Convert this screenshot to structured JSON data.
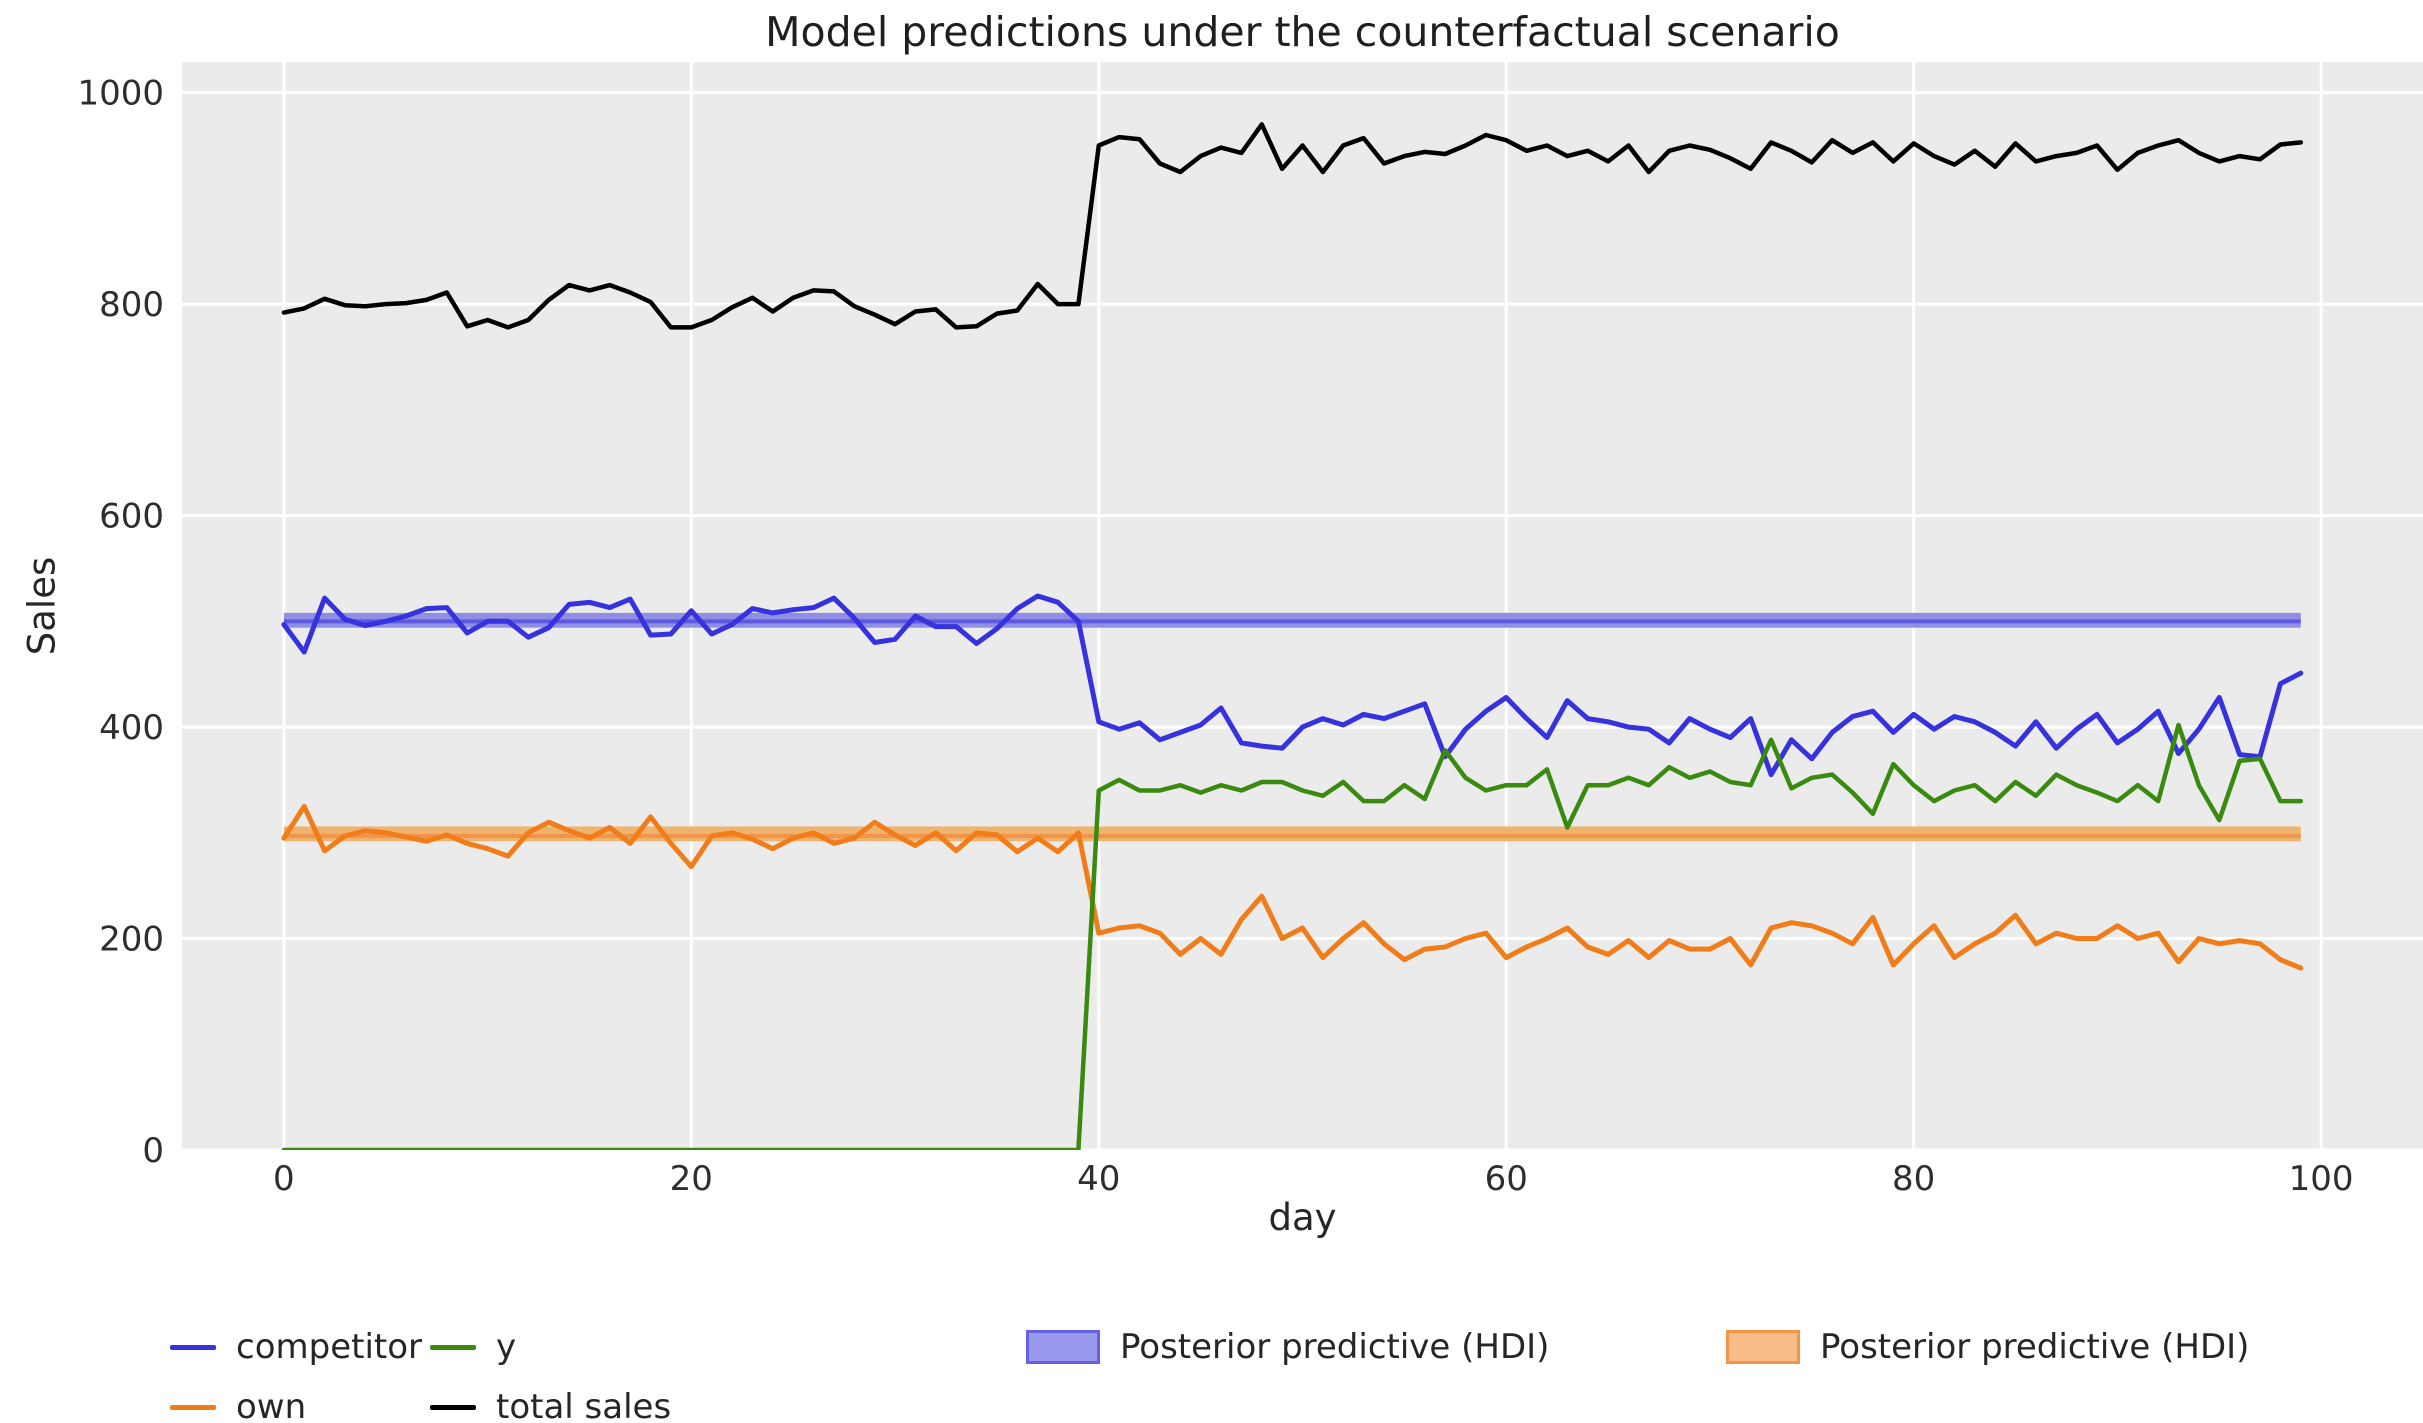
{
  "title": "Model predictions under the counterfactual scenario",
  "axes": {
    "xlabel": "day",
    "ylabel": "Sales"
  },
  "legend": {
    "items": [
      {
        "label": "competitor",
        "type": "line",
        "color": "#3632dd"
      },
      {
        "label": "own",
        "type": "line",
        "color": "#f07d1a"
      },
      {
        "label": "y",
        "type": "line",
        "color": "#3a8a10"
      },
      {
        "label": "total sales",
        "type": "line",
        "color": "#000000"
      },
      {
        "label": "Posterior predictive (HDI)",
        "type": "patch",
        "color": "#9a99ee",
        "edge": "#6561e6"
      },
      {
        "label": "Posterior predictive (HDI)",
        "type": "patch",
        "color": "#f8be87",
        "edge": "#f39448"
      }
    ]
  },
  "chart_data": {
    "type": "line",
    "title": "Model predictions under the counterfactual scenario",
    "xlabel": "day",
    "ylabel": "Sales",
    "xlim": [
      -5,
      105
    ],
    "ylim": [
      0,
      1029
    ],
    "xticks": [
      0,
      20,
      40,
      60,
      80,
      100
    ],
    "yticks": [
      0,
      200,
      400,
      600,
      800,
      1000
    ],
    "grid": true,
    "background": "#ebebeb",
    "gridcolor": "#ffffff",
    "tick_color": "#2e2e2e",
    "legend_position": "below",
    "x": [
      0,
      1,
      2,
      3,
      4,
      5,
      6,
      7,
      8,
      9,
      10,
      11,
      12,
      13,
      14,
      15,
      16,
      17,
      18,
      19,
      20,
      21,
      22,
      23,
      24,
      25,
      26,
      27,
      28,
      29,
      30,
      31,
      32,
      33,
      34,
      35,
      36,
      37,
      38,
      39,
      40,
      41,
      42,
      43,
      44,
      45,
      46,
      47,
      48,
      49,
      50,
      51,
      52,
      53,
      54,
      55,
      56,
      57,
      58,
      59,
      60,
      61,
      62,
      63,
      64,
      65,
      66,
      67,
      68,
      69,
      70,
      71,
      72,
      73,
      74,
      75,
      76,
      77,
      78,
      79,
      80,
      81,
      82,
      83,
      84,
      85,
      86,
      87,
      88,
      89,
      90,
      91,
      92,
      93,
      94,
      95,
      96,
      97,
      98,
      99
    ],
    "series": [
      {
        "name": "competitor",
        "color": "#3632dd",
        "width": 5,
        "values": [
          497,
          471,
          522,
          502,
          496,
          500,
          505,
          512,
          513,
          489,
          500,
          500,
          485,
          494,
          516,
          518,
          513,
          521,
          487,
          488,
          510,
          488,
          497,
          512,
          508,
          511,
          513,
          522,
          503,
          480,
          483,
          505,
          495,
          495,
          479,
          493,
          512,
          524,
          518,
          500,
          405,
          398,
          404,
          388,
          395,
          402,
          418,
          385,
          382,
          380,
          400,
          408,
          402,
          412,
          408,
          415,
          422,
          372,
          398,
          415,
          428,
          408,
          390,
          425,
          408,
          405,
          400,
          398,
          385,
          408,
          398,
          390,
          408,
          355,
          388,
          370,
          395,
          410,
          415,
          395,
          412,
          398,
          410,
          405,
          395,
          382,
          405,
          380,
          398,
          412,
          385,
          398,
          415,
          375,
          398,
          428,
          374,
          372,
          441,
          451
        ]
      },
      {
        "name": "own",
        "color": "#f07d1a",
        "width": 5,
        "values": [
          295,
          325,
          283,
          297,
          302,
          300,
          296,
          292,
          298,
          290,
          285,
          278,
          300,
          310,
          302,
          295,
          305,
          290,
          315,
          290,
          268,
          297,
          300,
          294,
          285,
          295,
          300,
          290,
          295,
          310,
          298,
          288,
          300,
          283,
          300,
          298,
          282,
          295,
          282,
          300,
          205,
          210,
          212,
          205,
          185,
          200,
          185,
          218,
          240,
          200,
          210,
          182,
          200,
          215,
          195,
          180,
          190,
          192,
          200,
          205,
          182,
          192,
          200,
          210,
          192,
          185,
          198,
          182,
          198,
          190,
          190,
          200,
          175,
          210,
          215,
          212,
          205,
          195,
          220,
          175,
          195,
          212,
          182,
          195,
          205,
          222,
          195,
          205,
          200,
          200,
          212,
          200,
          205,
          178,
          200,
          195,
          198,
          195,
          180,
          172
        ]
      },
      {
        "name": "y",
        "color": "#3a8a10",
        "width": 4.5,
        "values": [
          0,
          0,
          0,
          0,
          0,
          0,
          0,
          0,
          0,
          0,
          0,
          0,
          0,
          0,
          0,
          0,
          0,
          0,
          0,
          0,
          0,
          0,
          0,
          0,
          0,
          0,
          0,
          0,
          0,
          0,
          0,
          0,
          0,
          0,
          0,
          0,
          0,
          0,
          0,
          0,
          340,
          350,
          340,
          340,
          345,
          338,
          345,
          340,
          348,
          348,
          340,
          335,
          348,
          330,
          330,
          345,
          332,
          378,
          352,
          340,
          345,
          345,
          360,
          305,
          345,
          345,
          352,
          345,
          362,
          352,
          358,
          348,
          345,
          388,
          342,
          352,
          355,
          338,
          318,
          365,
          345,
          330,
          340,
          345,
          330,
          348,
          335,
          355,
          345,
          338,
          330,
          345,
          330,
          402,
          345,
          312,
          368,
          370,
          330,
          330
        ]
      },
      {
        "name": "total sales",
        "color": "#000000",
        "width": 4.5,
        "values": [
          792,
          796,
          805,
          799,
          798,
          800,
          801,
          804,
          811,
          779,
          785,
          778,
          785,
          804,
          818,
          813,
          818,
          811,
          802,
          778,
          778,
          785,
          797,
          806,
          793,
          806,
          813,
          812,
          798,
          790,
          781,
          793,
          795,
          778,
          779,
          791,
          794,
          819,
          800,
          800,
          950,
          958,
          956,
          933,
          925,
          940,
          948,
          943,
          970,
          928,
          950,
          925,
          950,
          957,
          933,
          940,
          944,
          942,
          950,
          960,
          955,
          945,
          950,
          940,
          945,
          935,
          950,
          925,
          945,
          950,
          946,
          938,
          928,
          953,
          945,
          934,
          955,
          943,
          953,
          935,
          952,
          940,
          932,
          945,
          930,
          952,
          935,
          940,
          943,
          950,
          927,
          943,
          950,
          955,
          943,
          935,
          940,
          937,
          951,
          953
        ]
      }
    ],
    "hdi_bands": [
      {
        "name": "Posterior predictive (HDI)",
        "applies_to": "competitor",
        "lower": 494,
        "upper": 508,
        "mean": 500,
        "fill": "#908ee4",
        "mean_color": "#5f59dd",
        "x_start": 0,
        "x_end": 99
      },
      {
        "name": "Posterior predictive (HDI)",
        "applies_to": "own",
        "lower": 292,
        "upper": 306,
        "mean": 297,
        "fill": "#eeb46e",
        "mean_color": "#f2954a",
        "x_start": 0,
        "x_end": 99
      }
    ]
  }
}
